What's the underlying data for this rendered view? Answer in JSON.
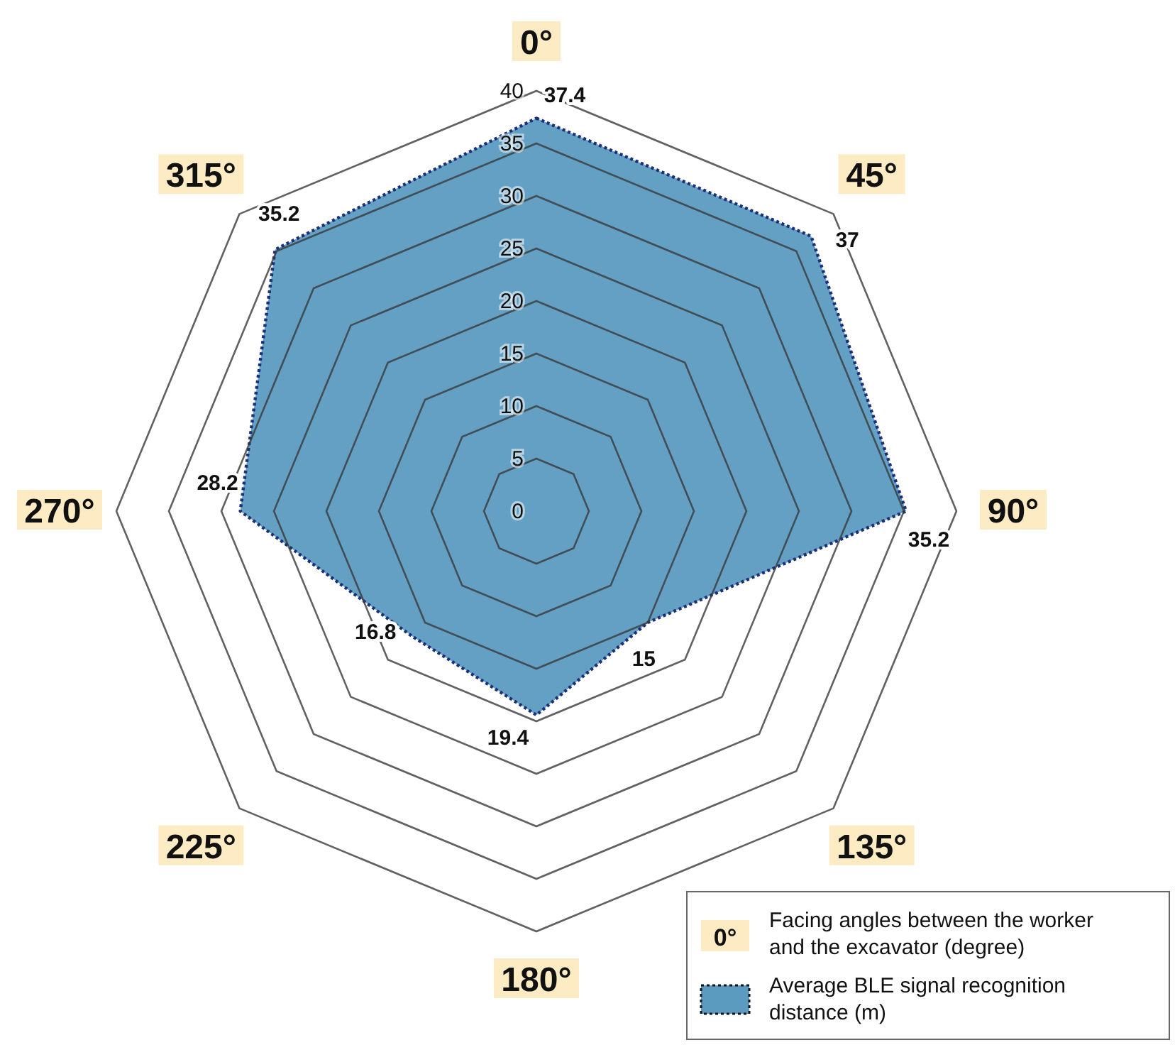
{
  "chart_data": {
    "type": "radar",
    "categories": [
      "0°",
      "45°",
      "90°",
      "135°",
      "180°",
      "225°",
      "270°",
      "315°"
    ],
    "series": [
      {
        "name": "Average BLE signal recognition distance (m)",
        "color": "#5b9bc0",
        "values": [
          37.4,
          37,
          35.2,
          15,
          19.4,
          16.8,
          28.2,
          35.2
        ]
      }
    ],
    "ylim": [
      0,
      40
    ],
    "yticks": [
      0,
      5,
      10,
      15,
      20,
      25,
      30,
      35,
      40
    ],
    "grid": true,
    "data_labels": true,
    "line_style": "dotted",
    "legend": "bottom right",
    "annotations": [
      "Facing angles between the worker and the excavator (degree)"
    ]
  }
}
